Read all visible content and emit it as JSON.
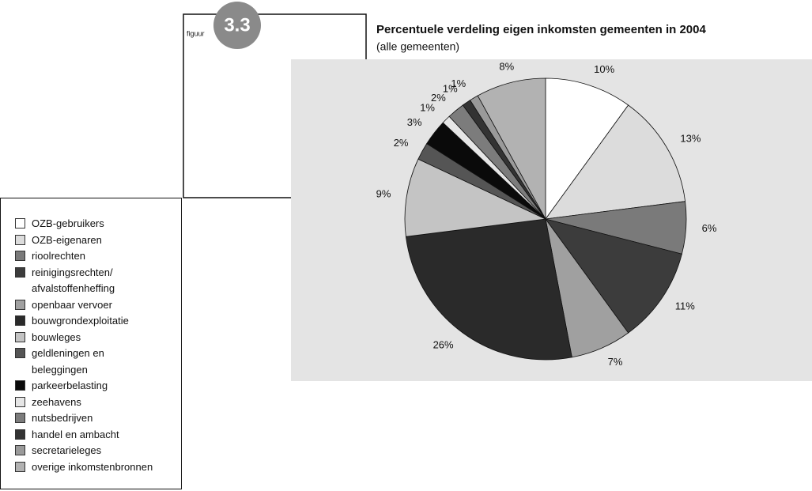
{
  "figure": {
    "label": "figuur",
    "number": "3.3"
  },
  "chart_data": {
    "type": "pie",
    "title": "Percentuele verdeling eigen inkomsten gemeenten in 2004",
    "subtitle": "(alle gemeenten)",
    "categories": [
      "OZB-gebruikers",
      "OZB-eigenaren",
      "rioolrechten",
      "reinigingsrechten/\nafvalstoffenheffing",
      "openbaar vervoer",
      "bouwgrondexploitatie",
      "bouwleges",
      "geldleningen en\nbeleggingen",
      "parkeerbelasting",
      "zeehavens",
      "nutsbedrijven",
      "handel en ambacht",
      "secretarieleges",
      "overige inkomstenbronnen"
    ],
    "values": [
      10,
      13,
      6,
      11,
      7,
      26,
      9,
      2,
      3,
      1,
      2,
      1,
      1,
      8
    ],
    "value_labels": [
      "10%",
      "13%",
      "6%",
      "11%",
      "7%",
      "26%",
      "9%",
      "2%",
      "3%",
      "1%",
      "2%",
      "1%",
      "1%",
      "8%"
    ],
    "colors": [
      "#ffffff",
      "#dcdcdc",
      "#7a7a7a",
      "#3c3c3c",
      "#a0a0a0",
      "#2a2a2a",
      "#c4c4c4",
      "#555555",
      "#0a0a0a",
      "#e6e6e6",
      "#7c7c7c",
      "#333333",
      "#9a9a9a",
      "#b2b2b2"
    ]
  }
}
